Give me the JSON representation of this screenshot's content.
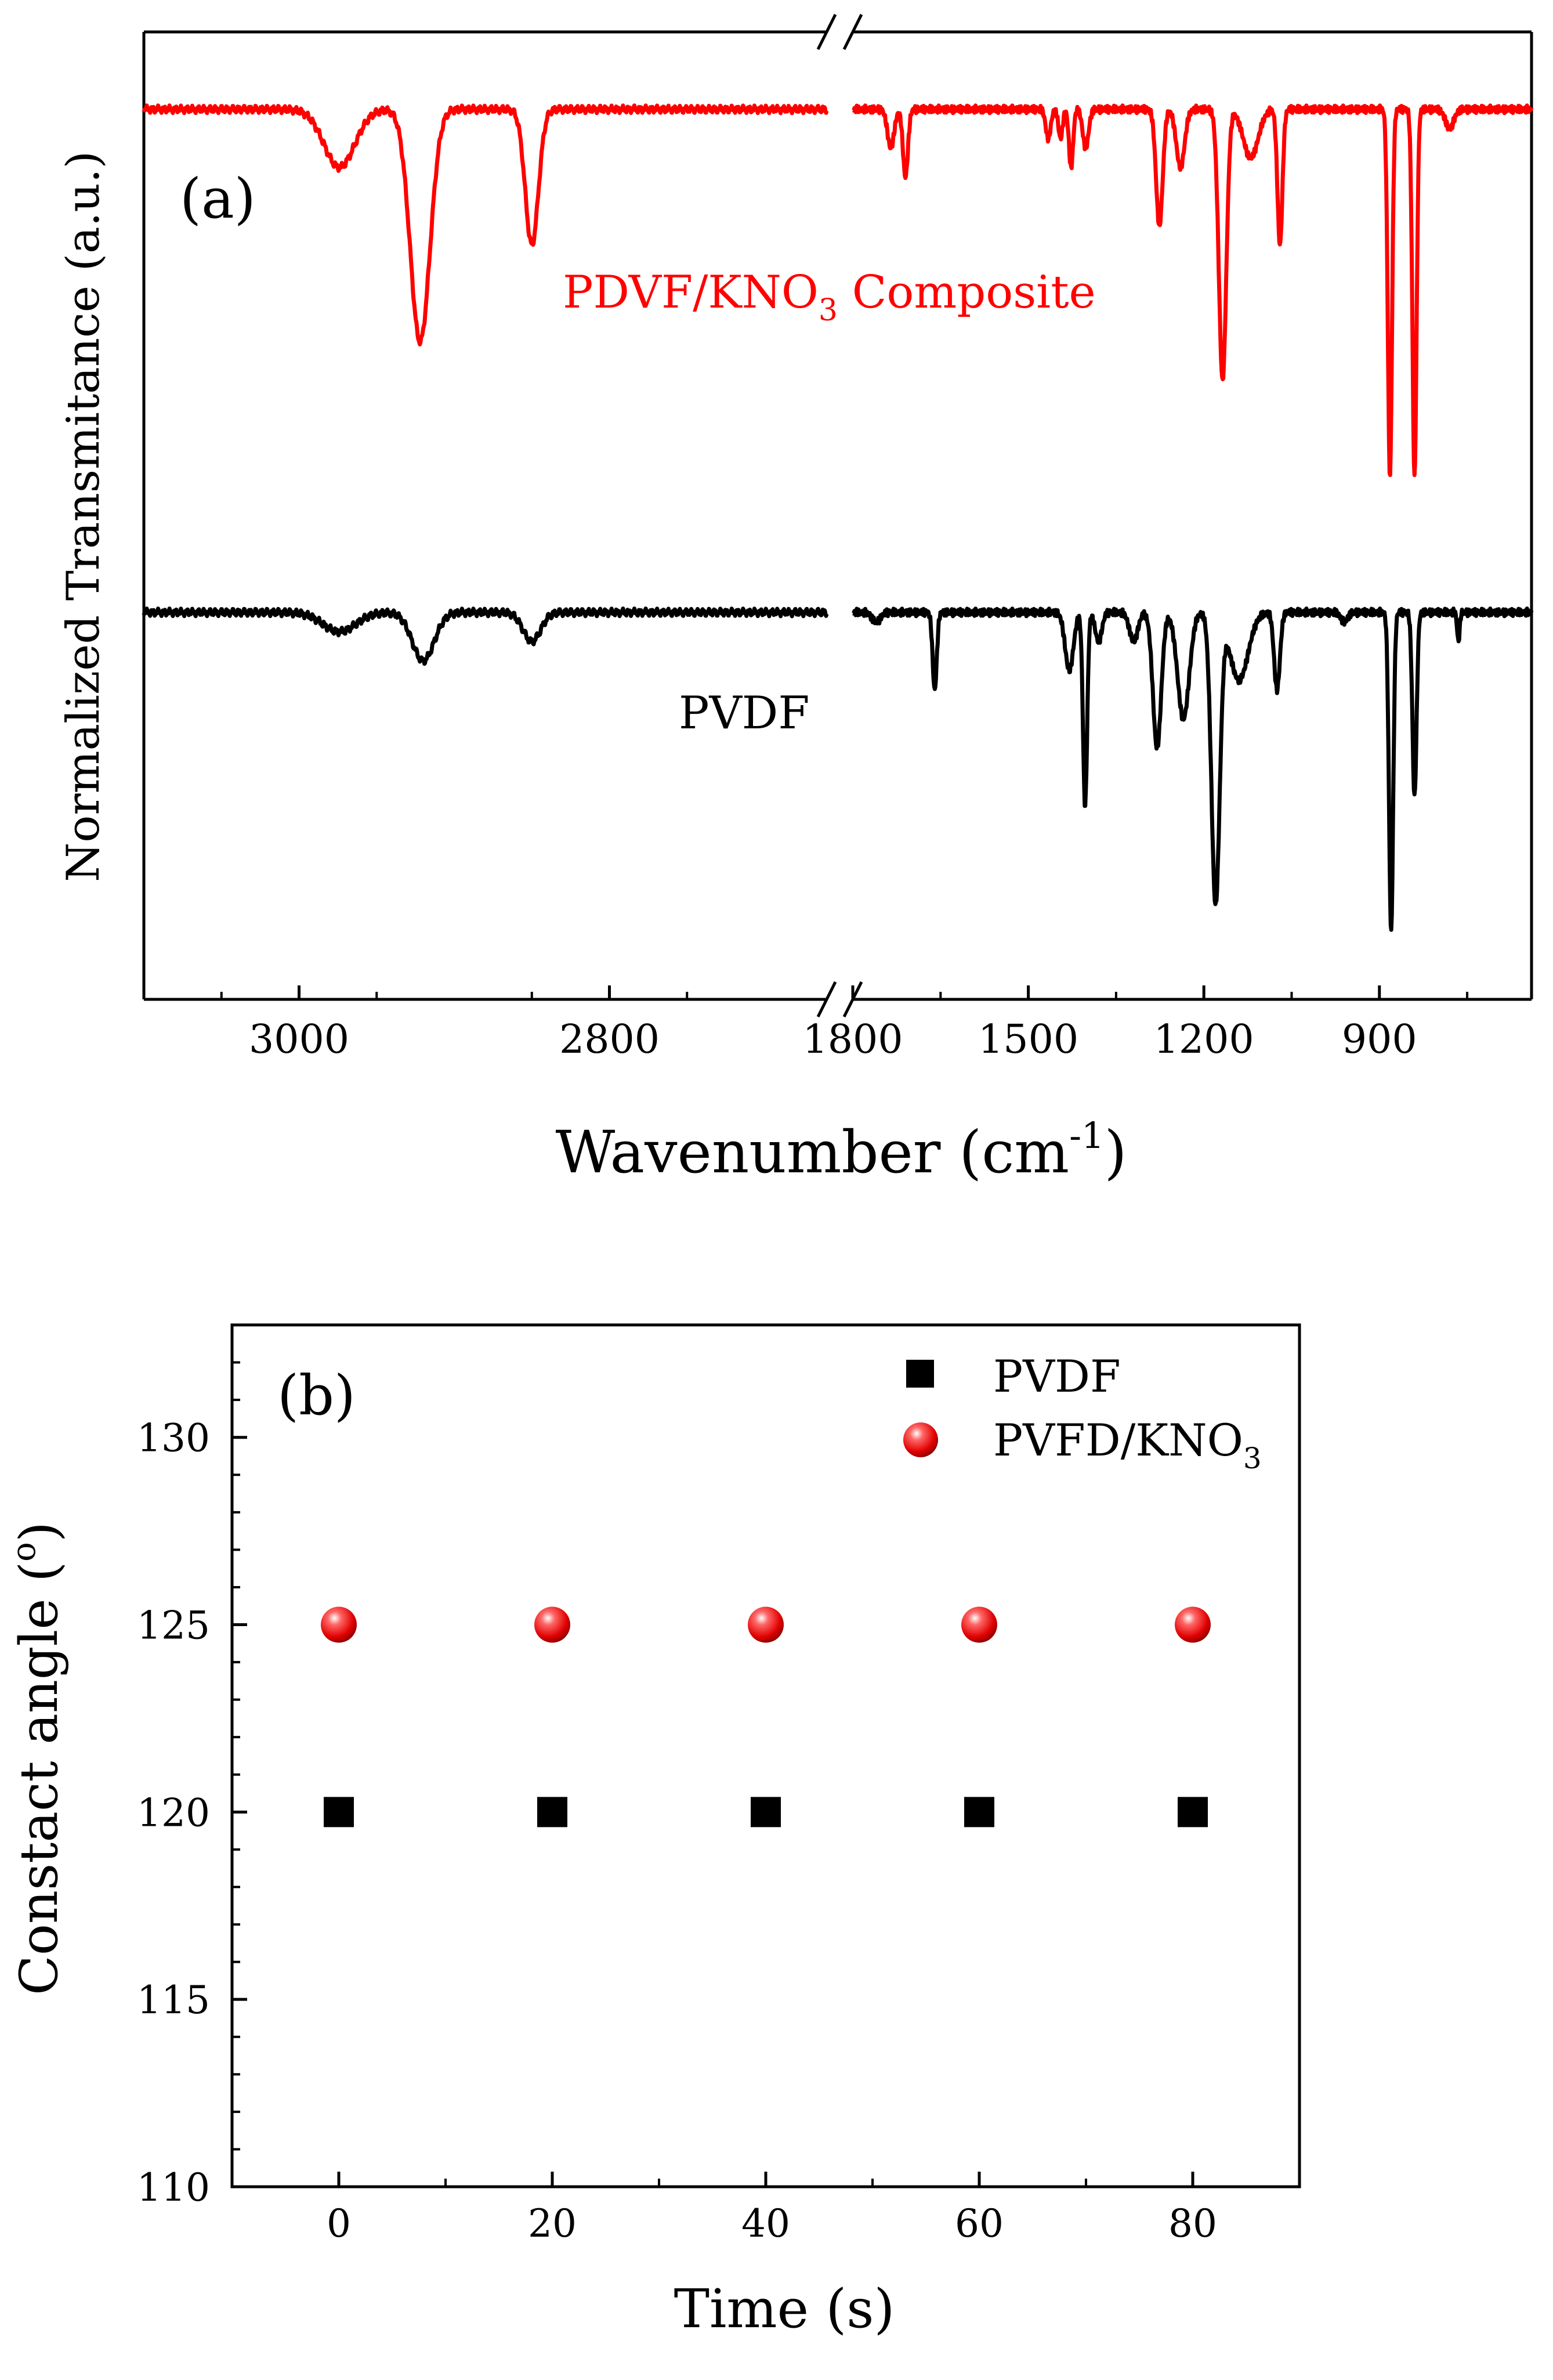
{
  "chart_data": [
    {
      "panel_label": "(a)",
      "type": "line",
      "xlabel_main": "Wavenumber (cm",
      "xlabel_sup": "-1",
      "xlabel_close": ")",
      "ylabel": "Normalized Transmitance (a.u.)",
      "x_direction": "decreasing",
      "axis_break": {
        "left_segment_end": 2660,
        "right_segment_start": 1800
      },
      "left_segment_range": [
        3100,
        2660
      ],
      "right_segment_range": [
        1800,
        640
      ],
      "ylim": [
        0,
        1
      ],
      "ticks_left": [
        3000,
        2800
      ],
      "ticks_right": [
        1800,
        1500,
        1200,
        900
      ],
      "tick_labels": [
        "3000",
        "2800",
        "1800",
        "1500",
        "1200",
        "900"
      ],
      "series": [
        {
          "name": "PDVF/KNO3 Composite",
          "label_main": "PDVF/KNO",
          "label_sub": "3",
          "label_tail": " Composite",
          "color": "#ff0000",
          "baseline": 0.92,
          "peaks": [
            {
              "x": 2974,
              "depth": 0.06,
              "width": 14
            },
            {
              "x": 2922,
              "depth": 0.24,
              "width": 9
            },
            {
              "x": 2850,
              "depth": 0.14,
              "width": 6
            },
            {
              "x": 1735,
              "depth": 0.04,
              "width": 8
            },
            {
              "x": 1710,
              "depth": 0.07,
              "width": 6
            },
            {
              "x": 1466,
              "depth": 0.03,
              "width": 6
            },
            {
              "x": 1445,
              "depth": 0.03,
              "width": 5
            },
            {
              "x": 1427,
              "depth": 0.06,
              "width": 5
            },
            {
              "x": 1402,
              "depth": 0.04,
              "width": 7
            },
            {
              "x": 1276,
              "depth": 0.12,
              "width": 8
            },
            {
              "x": 1240,
              "depth": 0.06,
              "width": 10
            },
            {
              "x": 1168,
              "depth": 0.28,
              "width": 9
            },
            {
              "x": 1120,
              "depth": 0.05,
              "width": 18
            },
            {
              "x": 1070,
              "depth": 0.14,
              "width": 6
            },
            {
              "x": 882,
              "depth": 0.38,
              "width": 5
            },
            {
              "x": 840,
              "depth": 0.38,
              "width": 5
            },
            {
              "x": 780,
              "depth": 0.02,
              "width": 10
            }
          ]
        },
        {
          "name": "PVDF",
          "label_main": "PVDF",
          "color": "#000000",
          "baseline": 0.4,
          "peaks": [
            {
              "x": 2974,
              "depth": 0.02,
              "width": 15
            },
            {
              "x": 2920,
              "depth": 0.05,
              "width": 10
            },
            {
              "x": 2850,
              "depth": 0.03,
              "width": 8
            },
            {
              "x": 1760,
              "depth": 0.01,
              "width": 10
            },
            {
              "x": 1660,
              "depth": 0.08,
              "width": 5
            },
            {
              "x": 1430,
              "depth": 0.06,
              "width": 10
            },
            {
              "x": 1403,
              "depth": 0.2,
              "width": 5
            },
            {
              "x": 1380,
              "depth": 0.03,
              "width": 8
            },
            {
              "x": 1320,
              "depth": 0.03,
              "width": 10
            },
            {
              "x": 1280,
              "depth": 0.14,
              "width": 10
            },
            {
              "x": 1235,
              "depth": 0.11,
              "width": 14
            },
            {
              "x": 1180,
              "depth": 0.3,
              "width": 10
            },
            {
              "x": 1140,
              "depth": 0.07,
              "width": 22
            },
            {
              "x": 1075,
              "depth": 0.08,
              "width": 7
            },
            {
              "x": 960,
              "depth": 0.01,
              "width": 8
            },
            {
              "x": 880,
              "depth": 0.33,
              "width": 5
            },
            {
              "x": 840,
              "depth": 0.19,
              "width": 5
            },
            {
              "x": 765,
              "depth": 0.03,
              "width": 3
            }
          ]
        }
      ]
    },
    {
      "panel_label": "(b)",
      "type": "scatter",
      "xlabel": "Time (s)",
      "ylabel": "Constact angle (",
      "ylabel_sup": "o",
      "ylabel_close": ")",
      "xlim": [
        -10,
        90
      ],
      "ylim": [
        110,
        133
      ],
      "xticks": [
        0,
        20,
        40,
        60,
        80
      ],
      "yticks": [
        110,
        115,
        120,
        125,
        130
      ],
      "x_tick_labels": [
        "0",
        "20",
        "40",
        "60",
        "80"
      ],
      "y_tick_labels": [
        "110",
        "115",
        "120",
        "125",
        "130"
      ],
      "legend_position": "top-right",
      "series": [
        {
          "name": "PVDF",
          "label_main": "PVDF",
          "marker": "square",
          "color": "#000000",
          "x": [
            0,
            20,
            40,
            60,
            80
          ],
          "y": [
            120,
            120,
            120,
            120,
            120
          ]
        },
        {
          "name": "PVFD/KNO3",
          "label_main": "PVFD/KNO",
          "label_sub": "3",
          "marker": "sphere",
          "color": "#ff0000",
          "x": [
            0,
            20,
            40,
            60,
            80
          ],
          "y": [
            125,
            125,
            125,
            125,
            125
          ]
        }
      ]
    }
  ]
}
